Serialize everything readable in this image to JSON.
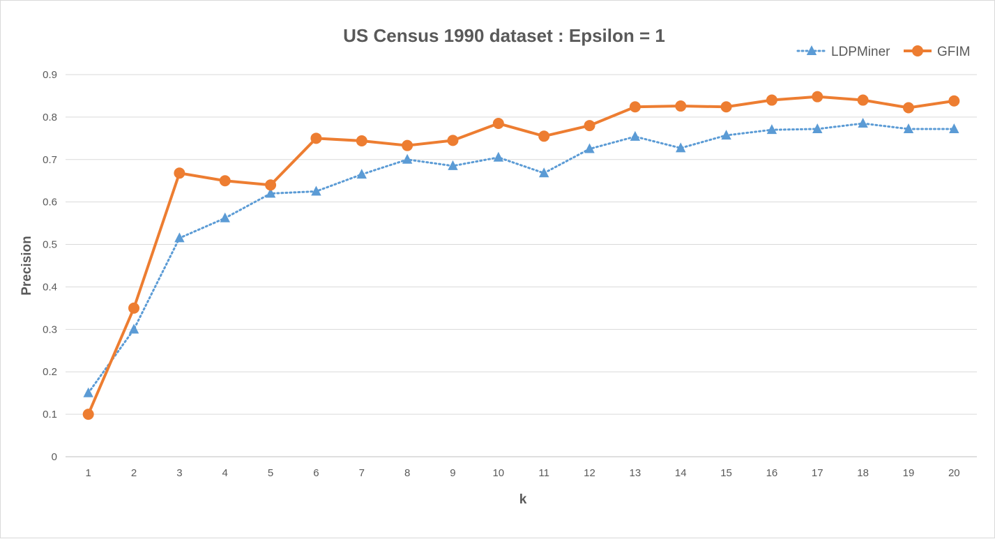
{
  "chart_data": {
    "type": "line",
    "title": "US Census 1990 dataset : Epsilon = 1",
    "xlabel": "k",
    "ylabel": "Precision",
    "x": [
      1,
      2,
      3,
      4,
      5,
      6,
      7,
      8,
      9,
      10,
      11,
      12,
      13,
      14,
      15,
      16,
      17,
      18,
      19,
      20
    ],
    "x_tick_labels": [
      "1",
      "2",
      "3",
      "4",
      "5",
      "6",
      "7",
      "8",
      "9",
      "10",
      "11",
      "12",
      "13",
      "14",
      "15",
      "16",
      "17",
      "18",
      "19",
      "20"
    ],
    "ylim": [
      0,
      0.9
    ],
    "y_ticks": [
      0,
      0.1,
      0.2,
      0.3,
      0.4,
      0.5,
      0.6,
      0.7,
      0.8,
      0.9
    ],
    "y_tick_labels": [
      "0",
      "0.1",
      "0.2",
      "0.3",
      "0.4",
      "0.5",
      "0.6",
      "0.7",
      "0.8",
      "0.9"
    ],
    "grid": "horizontal",
    "legend_position": "top-right",
    "series": [
      {
        "name": "LDPMiner",
        "color": "#5b9bd5",
        "line_style": "dotted",
        "marker": "triangle",
        "values": [
          0.15,
          0.3,
          0.515,
          0.562,
          0.62,
          0.625,
          0.665,
          0.7,
          0.685,
          0.705,
          0.668,
          0.725,
          0.754,
          0.727,
          0.757,
          0.77,
          0.772,
          0.785,
          0.772,
          0.772
        ]
      },
      {
        "name": "GFIM",
        "color": "#ed7d31",
        "line_style": "solid",
        "marker": "circle",
        "values": [
          0.1,
          0.35,
          0.668,
          0.65,
          0.64,
          0.75,
          0.744,
          0.733,
          0.745,
          0.785,
          0.755,
          0.78,
          0.824,
          0.826,
          0.824,
          0.84,
          0.848,
          0.84,
          0.822,
          0.838
        ]
      }
    ]
  }
}
